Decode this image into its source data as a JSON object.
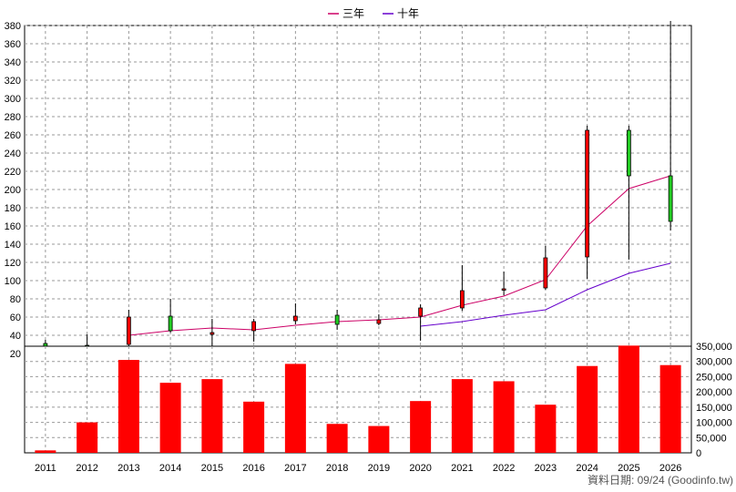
{
  "chart_data": {
    "type": "candlestick",
    "legend": [
      {
        "label": "三年",
        "color": "#cc0066"
      },
      {
        "label": "十年",
        "color": "#6600cc"
      }
    ],
    "years": [
      "2011",
      "2012",
      "2013",
      "2014",
      "2015",
      "2016",
      "2017",
      "2018",
      "2019",
      "2020",
      "2021",
      "2022",
      "2023",
      "2024",
      "2025",
      "2026"
    ],
    "price_axis": {
      "min": 20,
      "max": 380,
      "ticks": [
        20,
        40,
        60,
        80,
        100,
        120,
        140,
        160,
        180,
        200,
        220,
        240,
        260,
        280,
        300,
        320,
        340,
        360,
        380
      ]
    },
    "volume_axis": {
      "min": 0,
      "max": 350000,
      "ticks": [
        "0",
        "50,000",
        "100,000",
        "150,000",
        "200,000",
        "250,000",
        "300,000",
        "350,000"
      ]
    },
    "candles": [
      {
        "year": "2011",
        "open": 28,
        "close": 31,
        "high": 35,
        "low": 25
      },
      {
        "year": "2012",
        "open": 28,
        "close": 29,
        "high": 41,
        "low": 23
      },
      {
        "year": "2013",
        "open": 60,
        "close": 30,
        "high": 68,
        "low": 27
      },
      {
        "year": "2014",
        "open": 45,
        "close": 61,
        "high": 80,
        "low": 43
      },
      {
        "year": "2015",
        "open": 43,
        "close": 41,
        "high": 58,
        "low": 26
      },
      {
        "year": "2016",
        "open": 55,
        "close": 45,
        "high": 58,
        "low": 33
      },
      {
        "year": "2017",
        "open": 61,
        "close": 56,
        "high": 75,
        "low": 52
      },
      {
        "year": "2018",
        "open": 52,
        "close": 62,
        "high": 68,
        "low": 46
      },
      {
        "year": "2019",
        "open": 57,
        "close": 53,
        "high": 63,
        "low": 51
      },
      {
        "year": "2020",
        "open": 70,
        "close": 61,
        "high": 74,
        "low": 34
      },
      {
        "year": "2021",
        "open": 89,
        "close": 70,
        "high": 117,
        "low": 67
      },
      {
        "year": "2022",
        "open": 91,
        "close": 90,
        "high": 110,
        "low": 84
      },
      {
        "year": "2023",
        "open": 125,
        "close": 92,
        "high": 138,
        "low": 90
      },
      {
        "year": "2024",
        "open": 265,
        "close": 126,
        "high": 270,
        "low": 102
      },
      {
        "year": "2025",
        "open": 215,
        "close": 265,
        "high": 270,
        "low": 123
      },
      {
        "year": "2026",
        "open": 165,
        "close": 215,
        "high": 385,
        "low": 155
      }
    ],
    "series": [
      {
        "name": "三年",
        "color": "#cc0066",
        "values": [
          null,
          null,
          40,
          45,
          48,
          46,
          51,
          55,
          57,
          60,
          73,
          83,
          101,
          160,
          201,
          215
        ]
      },
      {
        "name": "十年",
        "color": "#6600cc",
        "values": [
          null,
          null,
          null,
          null,
          null,
          null,
          null,
          null,
          null,
          50,
          55,
          62,
          68,
          90,
          108,
          119
        ]
      }
    ],
    "volume": [
      8000,
      100000,
      305000,
      230000,
      242000,
      168000,
      292000,
      95000,
      88000,
      170000,
      242000,
      235000,
      158000,
      285000,
      352000,
      288000
    ]
  },
  "footer": "資料日期: 09/24  (Goodinfo.tw)"
}
